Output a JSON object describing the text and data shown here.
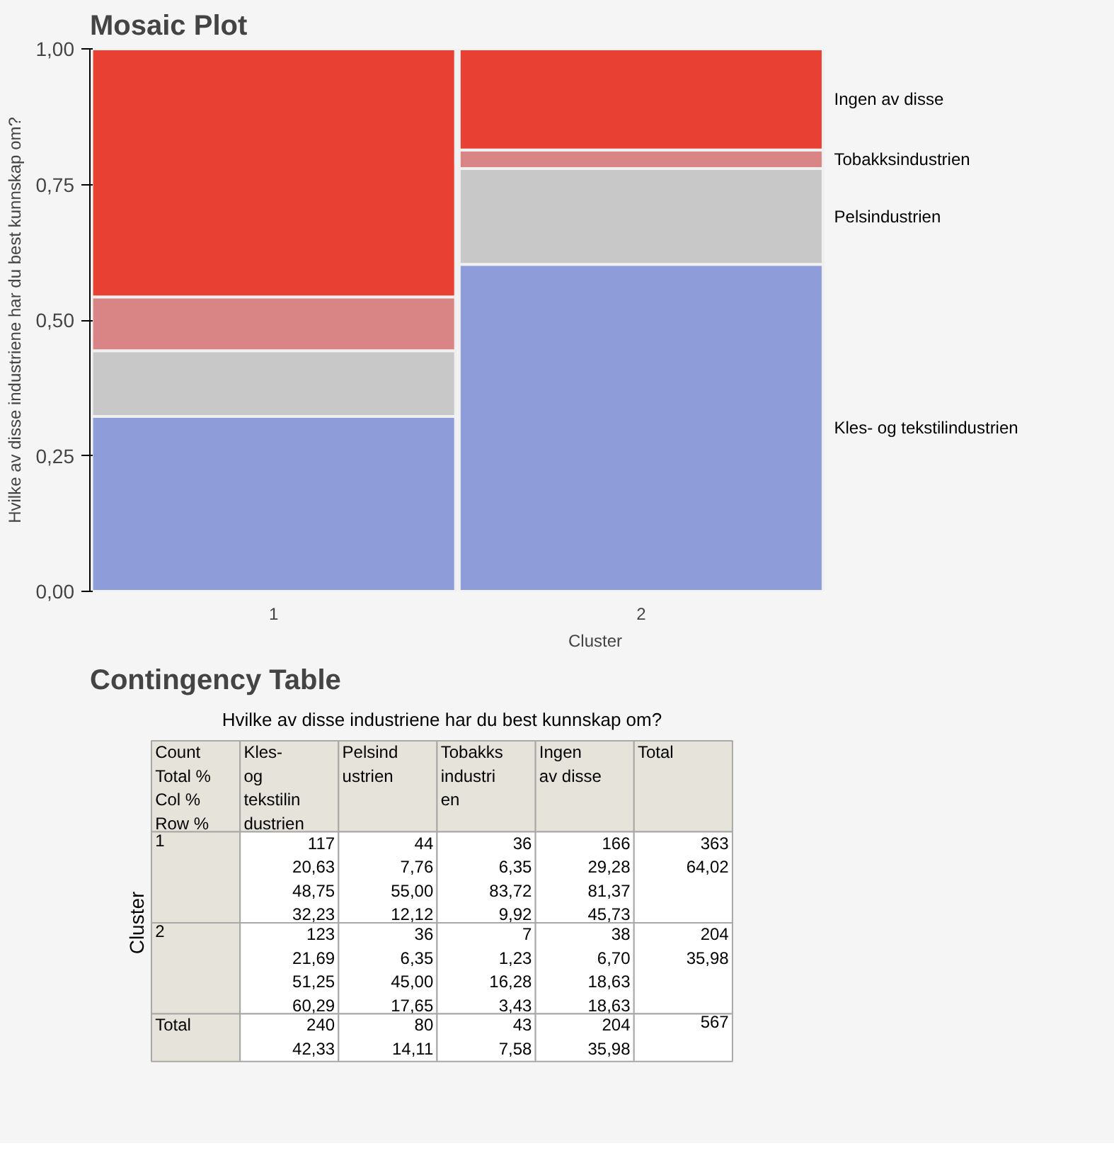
{
  "chart_data": [
    {
      "type": "bar",
      "title": "Mosaic Plot",
      "xlabel": "Cluster",
      "ylabel": "Hvilke av disse industriene har du best kunnskap om?",
      "stacked": true,
      "categories": [
        "1",
        "2"
      ],
      "ylim": [
        0,
        1
      ],
      "yticks": [
        {
          "value": 0,
          "label": "0,00"
        },
        {
          "value": 0.25,
          "label": "0,25"
        },
        {
          "value": 0.5,
          "label": "0,50"
        },
        {
          "value": 0.75,
          "label": "0,75"
        },
        {
          "value": 1,
          "label": "1,00"
        }
      ],
      "series": [
        {
          "name": "Kles- og tekstilindustrien",
          "color": "#8f9cda",
          "values": [
            0.3223,
            0.6029
          ]
        },
        {
          "name": "Pelsindustrien",
          "color": "#c8c8c8",
          "values": [
            0.1212,
            0.1765
          ]
        },
        {
          "name": "Tobakksindustrien",
          "color": "#d98585",
          "values": [
            0.0992,
            0.0343
          ]
        },
        {
          "name": "Ingen av disse",
          "color": "#e84134",
          "values": [
            0.4573,
            0.1863
          ]
        }
      ]
    },
    {
      "type": "other",
      "title": "Contingency Table",
      "subtitle": "Hvilke av disse industriene har du best kunnskap om?",
      "annotations": [
        "Count\nTotal %\nCol %\nRow %",
        "Kles-\nog\ntekstilin\ndustrien",
        "Pelsind\nustrien",
        "Tobakks\nindustri\nen",
        "Ingen\nav disse",
        "Total",
        "1",
        "117\n20,63\n48,75\n32,23",
        "44\n7,76\n55,00\n12,12",
        "36\n6,35\n83,72\n9,92",
        "166\n29,28\n81,37\n45,73",
        "363\n64,02",
        "2",
        "123\n21,69\n51,25\n60,29",
        "36\n6,35\n45,00\n17,65",
        "7\n1,23\n16,28\n3,43",
        "38\n6,70\n18,63\n18,63",
        "204\n35,98",
        "Total",
        "240\n42,33",
        "80\n14,11",
        "43\n7,58",
        "204\n35,98",
        "567",
        "Cluster"
      ]
    }
  ]
}
